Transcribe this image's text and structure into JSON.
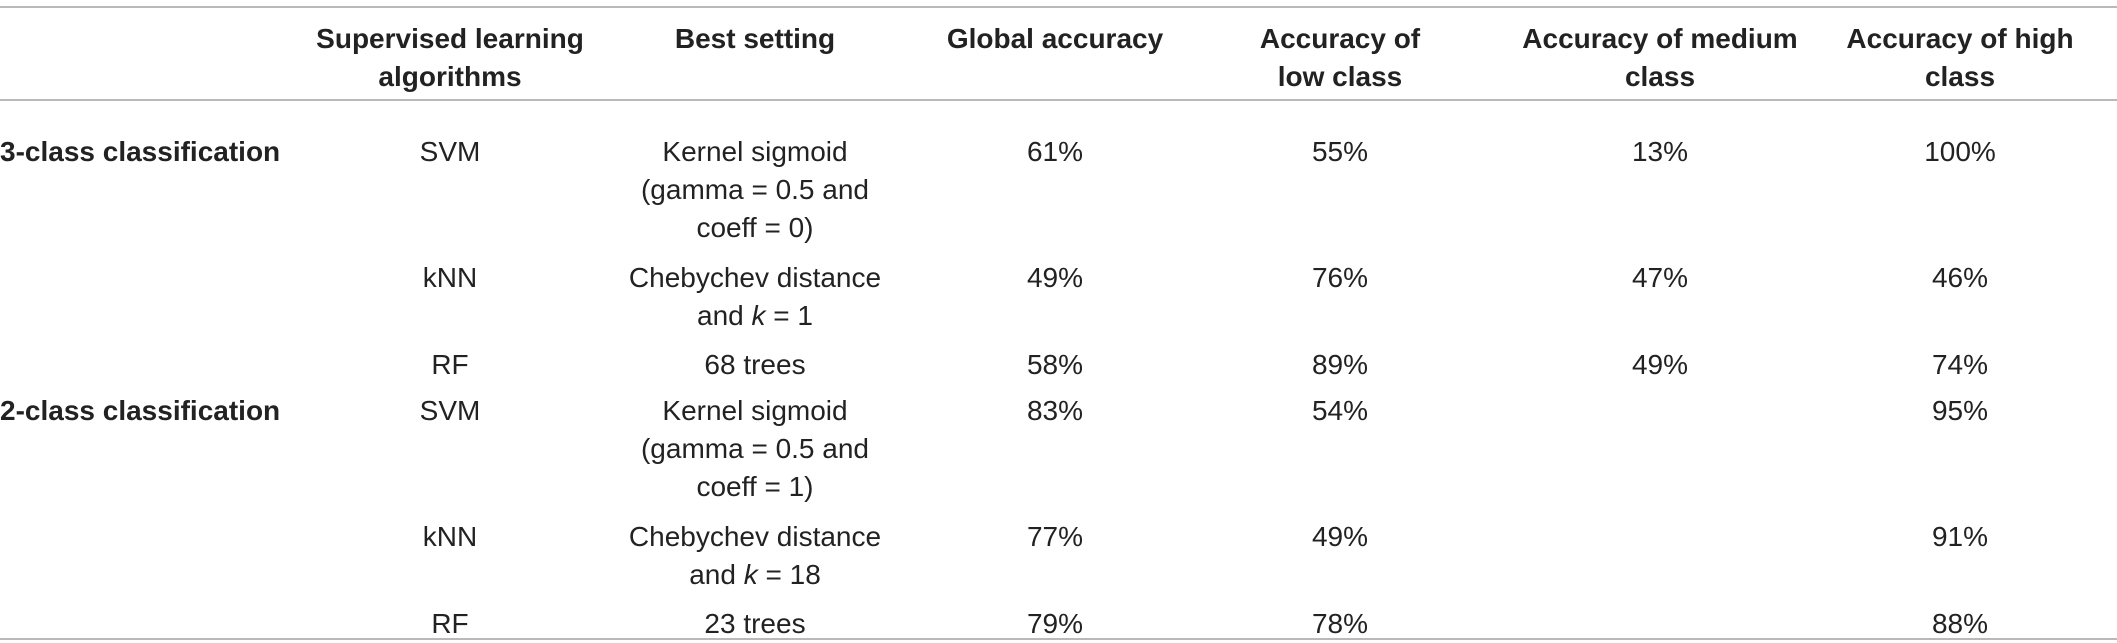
{
  "table": {
    "headers": {
      "algorithms": "Supervised learning algorithms",
      "best_setting": "Best setting",
      "global": "Global accuracy",
      "low": "Accuracy of low class",
      "medium": "Accuracy of medium class",
      "high": "Accuracy of high class"
    },
    "groups": [
      {
        "label": "3-class classification",
        "rows": [
          {
            "algorithm": "SVM",
            "setting_lines": [
              "Kernel sigmoid",
              "(gamma = 0.5 and",
              "coeff = 0)"
            ],
            "global": "61%",
            "low": "55%",
            "medium": "13%",
            "high": "100%"
          },
          {
            "algorithm": "kNN",
            "setting_lines": [
              "Chebychev distance",
              "and ",
              "k",
              " = 1"
            ],
            "global": "49%",
            "low": "76%",
            "medium": "47%",
            "high": "46%"
          },
          {
            "algorithm": "RF",
            "setting_lines": [
              "68 trees"
            ],
            "global": "58%",
            "low": "89%",
            "medium": "49%",
            "high": "74%"
          }
        ]
      },
      {
        "label": "2-class classification",
        "rows": [
          {
            "algorithm": "SVM",
            "setting_lines": [
              "Kernel sigmoid",
              "(gamma = 0.5 and",
              "coeff = 1)"
            ],
            "global": "83%",
            "low": "54%",
            "medium": "",
            "high": "95%"
          },
          {
            "algorithm": "kNN",
            "setting_lines": [
              "Chebychev distance",
              "and ",
              "k",
              " = 18"
            ],
            "global": "77%",
            "low": "49%",
            "medium": "",
            "high": "91%"
          },
          {
            "algorithm": "RF",
            "setting_lines": [
              "23 trees"
            ],
            "global": "79%",
            "low": "78%",
            "medium": "",
            "high": "88%"
          }
        ]
      }
    ]
  }
}
